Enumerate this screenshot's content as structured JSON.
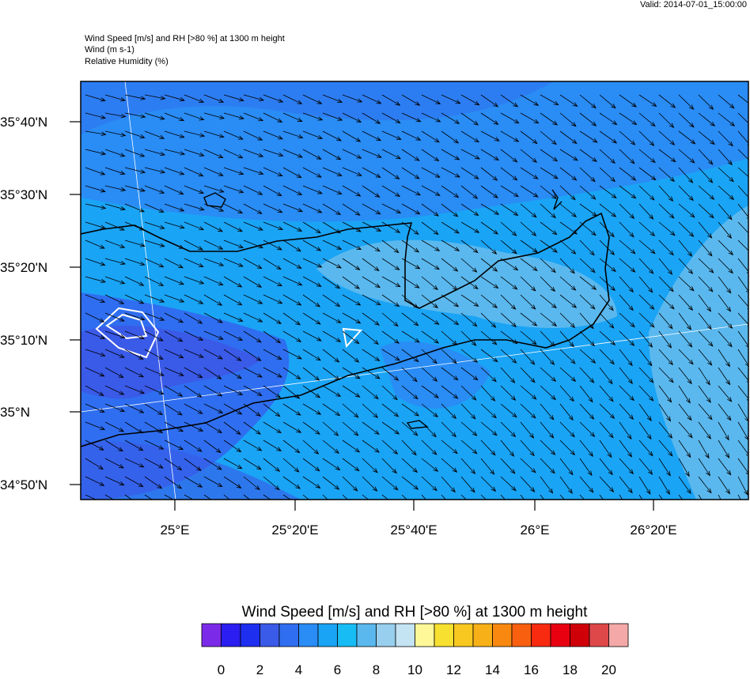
{
  "header": {
    "valid": "Valid: 2014-07-01_15:00:00",
    "lines": [
      "Wind Speed [m/s] and RH [>80 %] at 1300 m height",
      "Wind   (m s-1)",
      "Relative Humidity   (%)"
    ]
  },
  "map": {
    "lat_labels": [
      "35°40'N",
      "35°30'N",
      "35°20'N",
      "35°10'N",
      "35°N",
      "34°50'N"
    ],
    "lon_labels": [
      "25°E",
      "25°20'E",
      "25°40'E",
      "26°E",
      "26°20'E"
    ]
  },
  "colorbar": {
    "title": "Wind Speed [m/s] and RH [>80 %] at 1300 m height",
    "colors": [
      "#7b2be8",
      "#2a1ef0",
      "#1e2ff0",
      "#3a5ae8",
      "#2f6ef0",
      "#2a8cf5",
      "#1aa4f5",
      "#18bcf5",
      "#5ab8ee",
      "#98cfee",
      "#c4e4f4",
      "#fef898",
      "#f8e030",
      "#f8c820",
      "#f8b018",
      "#f88810",
      "#f86010",
      "#f82a10",
      "#e80010",
      "#d00008",
      "#de4848",
      "#f4a8a8"
    ],
    "ticks": [
      0,
      2,
      4,
      6,
      8,
      10,
      12,
      14,
      16,
      18,
      20
    ]
  }
}
